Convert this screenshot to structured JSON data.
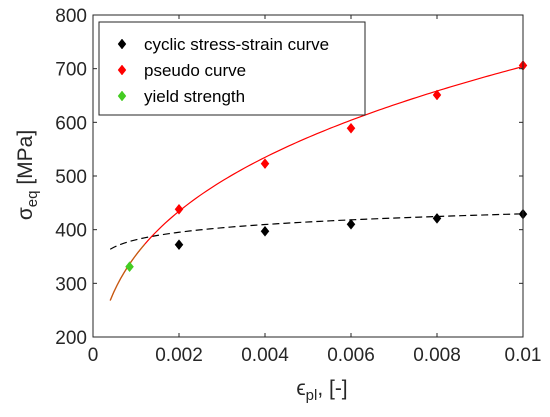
{
  "chart_data": {
    "type": "scatter",
    "xlabel": {
      "symbol": "ϵ",
      "sub": "pl",
      "suffix": ", [-]"
    },
    "ylabel": {
      "symbol": "σ",
      "sub": "eq",
      "suffix": " [MPa]"
    },
    "xlim": [
      0,
      0.01
    ],
    "ylim": [
      200,
      800
    ],
    "xticks": [
      0,
      0.002,
      0.004,
      0.006,
      0.008,
      0.01
    ],
    "xtick_labels": [
      "0",
      "0.002",
      "0.004",
      "0.006",
      "0.008",
      "0.01"
    ],
    "yticks": [
      200,
      300,
      400,
      500,
      600,
      700,
      800
    ],
    "ytick_labels": [
      "200",
      "300",
      "400",
      "500",
      "600",
      "700",
      "800"
    ],
    "grid": false,
    "legend_position": "top-left",
    "series": [
      {
        "name": "cyclic stress-strain curve",
        "color": "#000000",
        "marker": "diamond",
        "x": [
          0.002,
          0.004,
          0.006,
          0.008,
          0.01
        ],
        "y": [
          372,
          397,
          410,
          421,
          429
        ],
        "fit": {
          "style": "dashed",
          "color": "#000000",
          "x_range": [
            0.0004,
            0.01
          ],
          "a": 545.2,
          "b": 0.0518
        }
      },
      {
        "name": "pseudo curve",
        "color": "#ff0000",
        "marker": "diamond",
        "x": [
          0.002,
          0.004,
          0.006,
          0.008,
          0.01
        ],
        "y": [
          438,
          523,
          589,
          651,
          706
        ],
        "fit": {
          "style": "solid",
          "color": "#ff0000",
          "x_range": [
            0.0004,
            0.01
          ],
          "a": 2802.4,
          "b": 0.3
        },
        "fit_near_origin_color": "#c06010"
      },
      {
        "name": "yield strength",
        "color": "#44cc22",
        "marker": "diamond",
        "x": [
          0.00085
        ],
        "y": [
          331
        ]
      }
    ]
  }
}
